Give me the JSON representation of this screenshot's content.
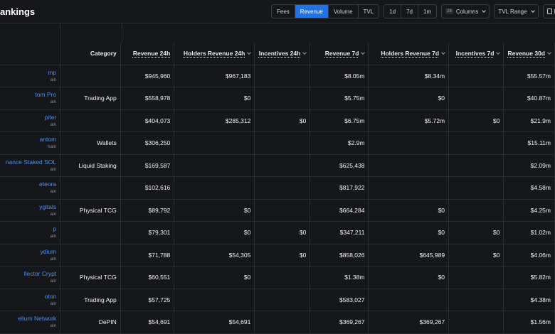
{
  "page": {
    "title": "ankings"
  },
  "toolbar": {
    "metric_tabs": [
      {
        "label": "Fees",
        "active": false
      },
      {
        "label": "Revenue",
        "active": true
      },
      {
        "label": "Volume",
        "active": false
      },
      {
        "label": "TVL",
        "active": false
      }
    ],
    "period_tabs": [
      {
        "label": "1d"
      },
      {
        "label": "7d"
      },
      {
        "label": "1m"
      }
    ],
    "columns_count": "26",
    "columns_label": "Columns",
    "tvl_range_label": "TVL Range",
    "download_label": "D"
  },
  "table": {
    "headers": {
      "category": "Category",
      "rev24": "Revenue 24h",
      "hold24": "Holders Revenue 24h",
      "inc24": "Incentives 24h",
      "rev7": "Revenue 7d",
      "hold7": "Holders Revenue 7d",
      "inc7": "Incentives 7d",
      "rev30": "Revenue 30d"
    },
    "rows": [
      {
        "name": "mp",
        "chain": "ain",
        "category": "",
        "rev24": "$945,960",
        "hold24": "$967,183",
        "inc24": "",
        "rev7": "$8.05m",
        "hold7": "$8.34m",
        "inc7": "",
        "rev30": "$55.57m"
      },
      {
        "name": "tom Pro",
        "chain": "ain",
        "category": "Trading App",
        "rev24": "$558,978",
        "hold24": "$0",
        "inc24": "",
        "rev7": "$5.75m",
        "hold7": "$0",
        "inc7": "",
        "rev30": "$40.87m"
      },
      {
        "name": "piter",
        "chain": "ain",
        "category": "",
        "rev24": "$404,073",
        "hold24": "$285,312",
        "inc24": "$0",
        "rev7": "$6.75m",
        "hold7": "$5.72m",
        "inc7": "$0",
        "rev30": "$21.9m"
      },
      {
        "name": "antom",
        "chain": "hain",
        "category": "Wallets",
        "rev24": "$306,250",
        "hold24": "",
        "inc24": "",
        "rev7": "$2.9m",
        "hold7": "",
        "inc7": "",
        "rev30": "$15.11m"
      },
      {
        "name": "nance Staked SOL",
        "chain": "ain",
        "category": "Liquid Staking",
        "rev24": "$169,587",
        "hold24": "",
        "inc24": "",
        "rev7": "$625,438",
        "hold7": "",
        "inc7": "",
        "rev30": "$2.09m"
      },
      {
        "name": "eteora",
        "chain": "ain",
        "category": "",
        "rev24": "$102,616",
        "hold24": "",
        "inc24": "",
        "rev7": "$817,922",
        "hold7": "",
        "inc7": "",
        "rev30": "$4.58m"
      },
      {
        "name": "ygitals",
        "chain": "ain",
        "category": "Physical TCG",
        "rev24": "$89,792",
        "hold24": "$0",
        "inc24": "",
        "rev7": "$664,284",
        "hold7": "$0",
        "inc7": "",
        "rev30": "$4.25m"
      },
      {
        "name": "p",
        "chain": "ain",
        "category": "",
        "rev24": "$79,301",
        "hold24": "$0",
        "inc24": "$0",
        "rev7": "$347,211",
        "hold7": "$0",
        "inc7": "$0",
        "rev30": "$1.02m"
      },
      {
        "name": "ydium",
        "chain": "ain",
        "category": "",
        "rev24": "$71,788",
        "hold24": "$54,305",
        "inc24": "$0",
        "rev7": "$858,026",
        "hold7": "$645,989",
        "inc7": "$0",
        "rev30": "$4.06m"
      },
      {
        "name": "llector Crypt",
        "chain": "ain",
        "category": "Physical TCG",
        "rev24": "$60,551",
        "hold24": "$0",
        "inc24": "",
        "rev7": "$1.38m",
        "hold7": "$0",
        "inc7": "",
        "rev30": "$5.82m"
      },
      {
        "name": "oton",
        "chain": "ain",
        "category": "Trading App",
        "rev24": "$57,725",
        "hold24": "",
        "inc24": "",
        "rev7": "$583,027",
        "hold7": "",
        "inc7": "",
        "rev30": "$4.38m"
      },
      {
        "name": "elium Network",
        "chain": "ain",
        "category": "DePIN",
        "rev24": "$54,691",
        "hold24": "$54,691",
        "inc24": "",
        "rev7": "$369,267",
        "hold7": "$369,267",
        "inc7": "",
        "rev30": "$1.56m"
      }
    ]
  }
}
